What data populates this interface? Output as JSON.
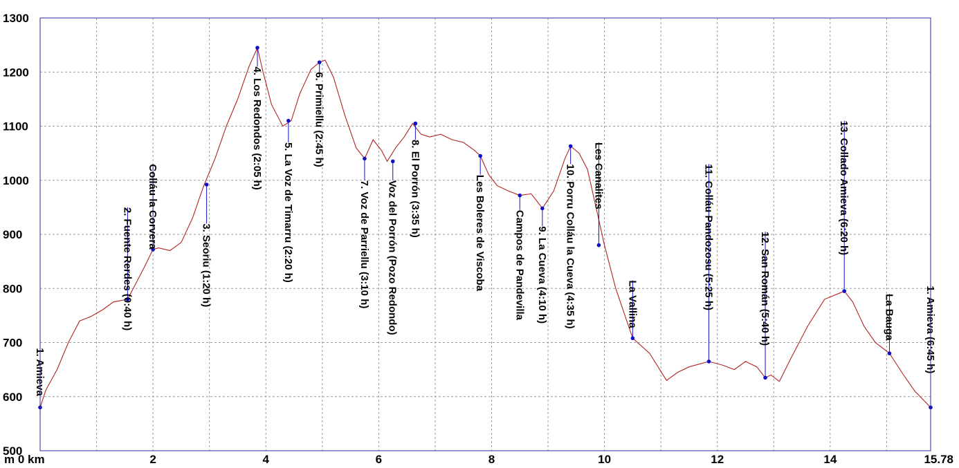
{
  "chart_data": {
    "type": "line",
    "title": "",
    "xlabel": "",
    "ylabel": "",
    "xlim": [
      0,
      15.78
    ],
    "ylim": [
      500,
      1300
    ],
    "grid": true,
    "y_ticks": [
      "500",
      "600",
      "700",
      "800",
      "900",
      "1000",
      "1100",
      "1200",
      "1300"
    ],
    "x_ticks": [
      {
        "value": 0,
        "label": "m 0 km"
      },
      {
        "value": 2,
        "label": "2"
      },
      {
        "value": 4,
        "label": "4"
      },
      {
        "value": 6,
        "label": "6"
      },
      {
        "value": 8,
        "label": "8"
      },
      {
        "value": 10,
        "label": "10"
      },
      {
        "value": 12,
        "label": "12"
      },
      {
        "value": 14,
        "label": "14"
      },
      {
        "value": 15.78,
        "label": "15.78"
      }
    ],
    "colors": {
      "profile": "#b22222",
      "waypoint": "#1010c8",
      "stem": "#1010c8",
      "frame": "#2a2a9a"
    },
    "series": [
      {
        "x": [
          0,
          0.1,
          0.3,
          0.5,
          0.7,
          0.9,
          1.1,
          1.3,
          1.55,
          1.7,
          1.85,
          2.0,
          2.1,
          2.3,
          2.5,
          2.7,
          2.9,
          3.1,
          3.3,
          3.5,
          3.7,
          3.85,
          3.95,
          4.1,
          4.3,
          4.45,
          4.6,
          4.8,
          4.95,
          5.05,
          5.2,
          5.4,
          5.6,
          5.75,
          5.9,
          6.05,
          6.15,
          6.3,
          6.45,
          6.6,
          6.75,
          6.9,
          7.1,
          7.3,
          7.5,
          7.7,
          7.8,
          7.95,
          8.1,
          8.3,
          8.5,
          8.7,
          8.8,
          8.9,
          9.1,
          9.3,
          9.4,
          9.55,
          9.7,
          9.85,
          10.0,
          10.2,
          10.5,
          10.8,
          11.1,
          11.3,
          11.5,
          11.85,
          12.1,
          12.3,
          12.5,
          12.7,
          12.85,
          12.95,
          13.1,
          13.3,
          13.6,
          13.9,
          14.25,
          14.4,
          14.6,
          14.8,
          15.05,
          15.3,
          15.5,
          15.78
        ],
        "y": [
          580,
          612,
          650,
          700,
          740,
          748,
          760,
          775,
          780,
          810,
          840,
          872,
          875,
          870,
          885,
          930,
          990,
          1040,
          1100,
          1150,
          1210,
          1245,
          1200,
          1140,
          1100,
          1110,
          1160,
          1205,
          1218,
          1222,
          1190,
          1120,
          1060,
          1040,
          1075,
          1055,
          1035,
          1060,
          1080,
          1105,
          1085,
          1080,
          1085,
          1075,
          1070,
          1055,
          1045,
          1010,
          990,
          980,
          972,
          975,
          962,
          948,
          980,
          1040,
          1063,
          1050,
          1020,
          950,
          880,
          800,
          708,
          680,
          630,
          645,
          655,
          665,
          658,
          650,
          665,
          655,
          635,
          640,
          628,
          670,
          730,
          780,
          795,
          775,
          730,
          700,
          680,
          640,
          610,
          580
        ]
      }
    ],
    "waypoints": [
      {
        "x": 0.0,
        "y": 580,
        "label": "1. Amieva",
        "top": 690
      },
      {
        "x": 1.55,
        "y": 780,
        "label": "2. Fuente Rerdes (0:40 h)",
        "top": 950
      },
      {
        "x": 2.0,
        "y": 872,
        "label": "Colláu la Corvera",
        "top": 1030
      },
      {
        "x": 2.95,
        "y": 992,
        "label": "3. Seoriu (1:20 h)",
        "top": 920
      },
      {
        "x": 3.85,
        "y": 1245,
        "label": "4. Los Redondos (2:05 h)",
        "top": 1210
      },
      {
        "x": 4.4,
        "y": 1110,
        "label": "5. La Voz de Timarru (2:20 h)",
        "top": 1070
      },
      {
        "x": 4.95,
        "y": 1218,
        "label": "6. Primiellu (2:45 h)",
        "top": 1200
      },
      {
        "x": 5.75,
        "y": 1040,
        "label": "7. Voz de Parriellu (3:10 h)",
        "top": 1000
      },
      {
        "x": 6.25,
        "y": 1035,
        "label": "Voz del Porrón (Pozo Redondo)",
        "top": 1000
      },
      {
        "x": 6.65,
        "y": 1105,
        "label": "8. El Porrón (3:35 h)",
        "top": 1075
      },
      {
        "x": 7.8,
        "y": 1045,
        "label": "Les Boleres de Viscoba",
        "top": 1010
      },
      {
        "x": 8.5,
        "y": 972,
        "label": "Campos de Pandevilla",
        "top": 945
      },
      {
        "x": 8.9,
        "y": 948,
        "label": "9. La Cueva (4:10 h)",
        "top": 915
      },
      {
        "x": 9.4,
        "y": 1063,
        "label": "10. Porru Colláu la Cueva (4:35 h)",
        "top": 1030
      },
      {
        "x": 9.9,
        "y": 880,
        "label": "Les Canalites",
        "top": 1070
      },
      {
        "x": 10.5,
        "y": 708,
        "label": "La Vallina",
        "top": 815
      },
      {
        "x": 11.85,
        "y": 665,
        "label": "11. Colláu Pandozosu (5:25 h)",
        "top": 1030
      },
      {
        "x": 12.85,
        "y": 635,
        "label": "12. San Román (5:40 h)",
        "top": 905
      },
      {
        "x": 14.25,
        "y": 795,
        "label": "13. Collado Amieva (6:20 h)",
        "top": 1110
      },
      {
        "x": 15.05,
        "y": 680,
        "label": "La Bauga",
        "top": 790
      },
      {
        "x": 15.78,
        "y": 580,
        "label": "1. Amieva (6:45 h)",
        "top": 805
      }
    ]
  }
}
